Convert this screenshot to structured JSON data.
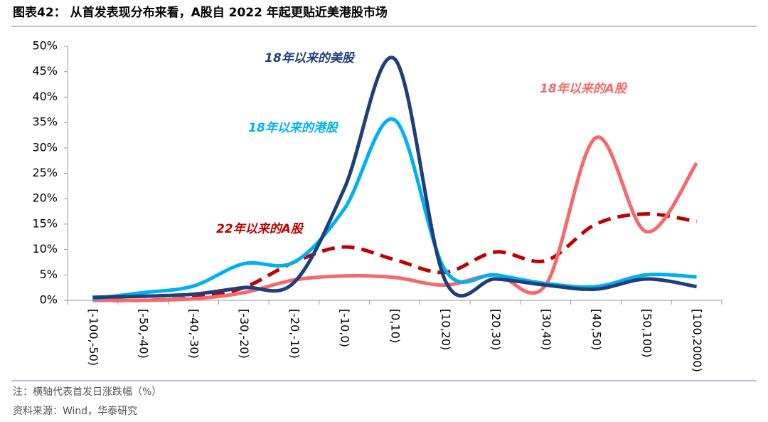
{
  "header": {
    "title": "图表42： 从首发表现分布来看，A股自 2022 年起更贴近美港股市场"
  },
  "chart_data": {
    "type": "line",
    "categories": [
      "[-100,-50)",
      "[-50,-40)",
      "[-40,-30)",
      "[-30,-20)",
      "[-20,-10)",
      "[-10,0)",
      "[0,10)",
      "[10,20)",
      "[20,30)",
      "[30,40)",
      "[40,50)",
      "[50,100)",
      "[100,2000)"
    ],
    "series": [
      {
        "name": "18年以来的美股",
        "color": "#1f3f7a",
        "values": [
          0.6,
          0.8,
          1.2,
          2.5,
          3.5,
          22,
          47.5,
          4,
          4.2,
          3,
          2.2,
          4.2,
          2.7
        ]
      },
      {
        "name": "18年以来的港股",
        "color": "#00b0f0",
        "values": [
          0.3,
          1.5,
          2.8,
          7.2,
          7.5,
          18,
          35.5,
          6,
          5,
          3.3,
          2.7,
          5,
          4.6
        ]
      },
      {
        "name": "18年以来的A股",
        "color": "#f4696b",
        "values": [
          0,
          0,
          0.3,
          1.5,
          4,
          4.8,
          4.5,
          3,
          5,
          3,
          32,
          13.5,
          27
        ]
      },
      {
        "name": "22年以来的A股",
        "color": "#c00000",
        "dashed": true,
        "values": [
          0,
          0,
          0.5,
          2.5,
          7.5,
          10.5,
          8,
          5.5,
          9.5,
          7.8,
          15,
          17,
          15.5
        ]
      }
    ],
    "ylim": [
      0,
      50
    ],
    "yticks": [
      {
        "value": 0,
        "label": "0%"
      },
      {
        "value": 5,
        "label": "5%"
      },
      {
        "value": 10,
        "label": "10%"
      },
      {
        "value": 15,
        "label": "15%"
      },
      {
        "value": 20,
        "label": "20%"
      },
      {
        "value": 25,
        "label": "25%"
      },
      {
        "value": 30,
        "label": "30%"
      },
      {
        "value": 35,
        "label": "35%"
      },
      {
        "value": 40,
        "label": "40%"
      },
      {
        "value": 45,
        "label": "45%"
      },
      {
        "value": 50,
        "label": "50%"
      }
    ],
    "smooth": true
  },
  "notes": [
    "注：横轴代表首发日涨跌幅（%）",
    "资料来源：Wind，华泰研究"
  ]
}
